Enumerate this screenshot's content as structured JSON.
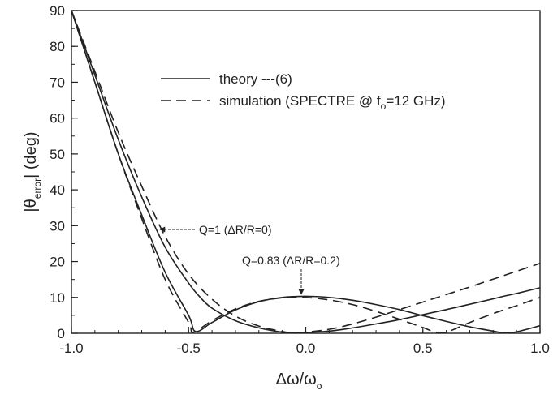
{
  "chart_data": {
    "type": "line",
    "xlabel": {
      "main": "Δω/ω",
      "sub": "o"
    },
    "ylabel": {
      "pre": "|θ",
      "sub": "error",
      "post": "| (deg)"
    },
    "xlim": [
      -1.0,
      1.0
    ],
    "ylim": [
      0,
      90
    ],
    "xticks": [
      -1.0,
      -0.5,
      0.0,
      0.5,
      1.0
    ],
    "xtick_labels": [
      "-1.0",
      "-0.5",
      "0.0",
      "0.5",
      "1.0"
    ],
    "yticks": [
      0,
      10,
      20,
      30,
      40,
      50,
      60,
      70,
      80,
      90
    ],
    "yminor_step": 5,
    "xminor_step": 0.1,
    "legend": {
      "placement": "top-center",
      "items": [
        {
          "style": "solid",
          "label": "theory ---(6)"
        },
        {
          "style": "dashed",
          "label_pre": "simulation (SPECTRE @ f",
          "label_sub": "o",
          "label_post": "=12 GHz)"
        }
      ]
    },
    "annotations": [
      {
        "text": "Q=1 (ΔR/R=0)"
      },
      {
        "text": "Q=0.83 (ΔR/R=0.2)"
      }
    ],
    "series": [
      {
        "style": "solid",
        "x": [
          -1.0,
          -0.9,
          -0.8,
          -0.7,
          -0.6,
          -0.5,
          -0.45,
          -0.4,
          -0.3,
          -0.2,
          -0.1,
          -0.05,
          0.0,
          0.1,
          0.2,
          0.3,
          0.4,
          0.5,
          0.6,
          0.7,
          0.8,
          0.85,
          0.9,
          1.0
        ],
        "y": [
          90,
          72,
          54,
          38,
          24,
          14,
          10,
          7,
          3.5,
          1.5,
          0.3,
          0.1,
          0.2,
          0.6,
          1.5,
          2.6,
          3.8,
          5.2,
          6.6,
          8.1,
          9.6,
          10.4,
          11.1,
          12.7
        ]
      },
      {
        "style": "solid",
        "x": [
          -1.0,
          -0.9,
          -0.8,
          -0.7,
          -0.6,
          -0.5,
          -0.47,
          -0.4,
          -0.3,
          -0.2,
          -0.1,
          0.0,
          0.1,
          0.2,
          0.3,
          0.4,
          0.5,
          0.6,
          0.7,
          0.8,
          0.85,
          0.9,
          1.0
        ],
        "y": [
          90,
          70,
          50,
          33,
          17,
          5,
          0.5,
          3,
          6.5,
          8.8,
          10,
          10.3,
          10,
          9.2,
          8,
          6.6,
          4.9,
          3.3,
          1.8,
          0.6,
          0.1,
          0.4,
          2.1
        ]
      },
      {
        "style": "dashed",
        "x": [
          -1.0,
          -0.9,
          -0.8,
          -0.7,
          -0.6,
          -0.5,
          -0.4,
          -0.3,
          -0.2,
          -0.1,
          -0.05,
          0.0,
          0.1,
          0.2,
          0.3,
          0.4,
          0.5,
          0.6,
          0.7,
          0.8,
          0.9,
          1.0
        ],
        "y": [
          90,
          73,
          56,
          41,
          27,
          16.5,
          9.5,
          4.8,
          2.0,
          0.5,
          0.1,
          0.3,
          1.1,
          2.6,
          4.5,
          6.6,
          8.7,
          10.8,
          12.9,
          15.1,
          17.3,
          19.5
        ]
      },
      {
        "style": "dashed",
        "x": [
          -1.0,
          -0.9,
          -0.8,
          -0.7,
          -0.6,
          -0.5,
          -0.48,
          -0.4,
          -0.3,
          -0.2,
          -0.1,
          -0.05,
          0.0,
          0.1,
          0.2,
          0.3,
          0.4,
          0.5,
          0.55,
          0.6,
          0.7,
          0.8,
          0.9,
          1.0
        ],
        "y": [
          90,
          70,
          50,
          32,
          15,
          3,
          0.3,
          3.5,
          6.8,
          8.9,
          9.9,
          10.1,
          10,
          9.3,
          8,
          6.1,
          3.9,
          1.6,
          0.4,
          0.3,
          3,
          5.5,
          7.7,
          10
        ]
      }
    ]
  }
}
